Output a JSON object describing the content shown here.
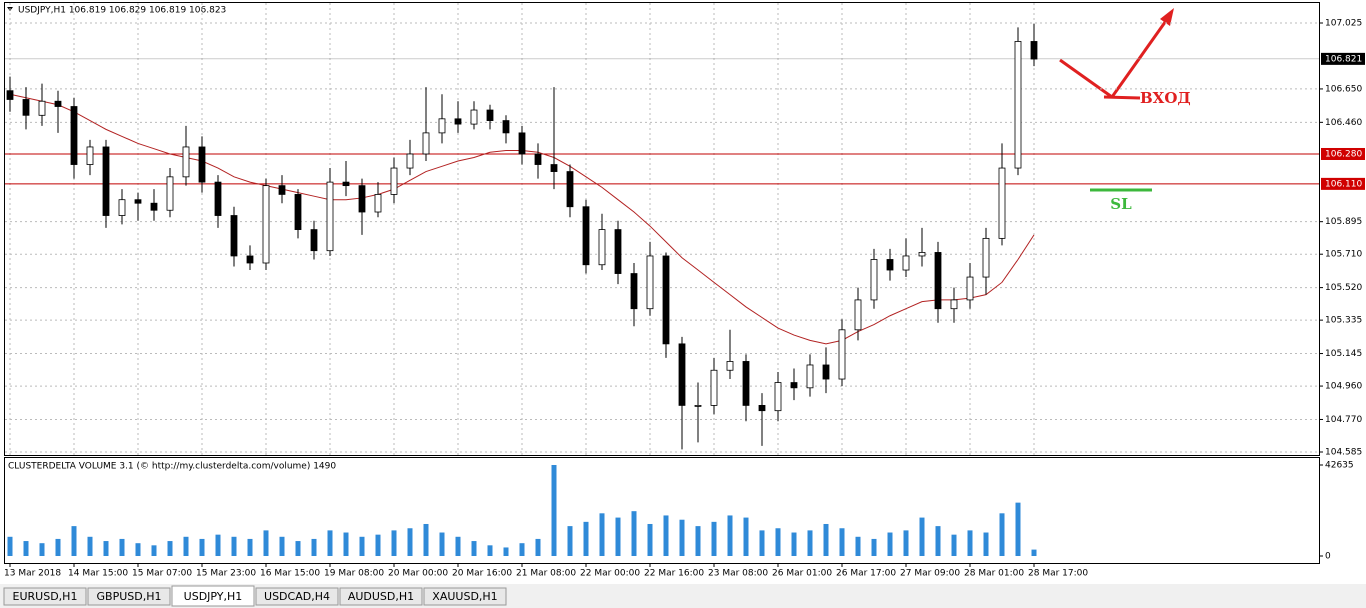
{
  "chart_data": {
    "type": "candlestick",
    "title": "USDJPY,H1  106.819 106.829 106.819 106.823",
    "open": [
      106.64,
      106.59,
      106.5,
      106.58,
      106.55,
      106.22,
      106.32,
      105.93,
      106.02,
      106.0,
      105.96,
      106.15,
      106.32,
      106.12,
      105.93,
      105.7,
      105.66,
      106.1,
      106.05,
      105.85,
      105.73,
      106.12,
      106.1,
      105.95,
      106.05,
      106.2,
      106.28,
      106.4,
      106.48,
      106.45,
      106.53,
      106.47,
      106.4,
      106.28,
      106.22,
      106.18,
      105.98,
      105.65,
      105.85,
      105.6,
      105.4,
      105.7,
      105.2,
      104.85,
      104.85,
      105.05,
      105.1,
      104.85,
      104.82,
      104.98,
      104.95,
      105.08,
      105.0,
      105.28,
      105.45,
      105.68,
      105.62,
      105.7,
      105.72,
      105.4,
      105.45,
      105.58,
      105.8,
      106.2,
      106.92
    ],
    "high": [
      106.72,
      106.66,
      106.68,
      106.64,
      106.6,
      106.36,
      106.36,
      106.08,
      106.06,
      106.08,
      106.2,
      106.44,
      106.38,
      106.16,
      105.98,
      105.76,
      106.14,
      106.16,
      106.08,
      105.9,
      106.2,
      106.24,
      106.14,
      106.12,
      106.26,
      106.36,
      106.66,
      106.62,
      106.58,
      106.58,
      106.56,
      106.5,
      106.44,
      106.34,
      106.66,
      106.22,
      106.02,
      105.94,
      105.9,
      105.66,
      105.78,
      105.72,
      105.24,
      104.98,
      105.12,
      105.28,
      105.14,
      104.92,
      105.04,
      105.06,
      105.14,
      105.18,
      105.34,
      105.52,
      105.74,
      105.74,
      105.8,
      105.86,
      105.78,
      105.52,
      105.66,
      105.86,
      106.34,
      107.0,
      107.02
    ],
    "low": [
      106.52,
      106.42,
      106.44,
      106.4,
      106.14,
      106.16,
      105.86,
      105.88,
      105.9,
      105.9,
      105.92,
      106.1,
      106.06,
      105.86,
      105.64,
      105.62,
      105.62,
      106.0,
      105.8,
      105.68,
      105.7,
      106.04,
      105.82,
      105.92,
      106.0,
      106.16,
      106.24,
      106.34,
      106.4,
      106.42,
      106.42,
      106.34,
      106.22,
      106.14,
      106.08,
      105.92,
      105.6,
      105.62,
      105.54,
      105.3,
      105.36,
      105.12,
      104.6,
      104.64,
      104.8,
      105.0,
      104.76,
      104.62,
      104.76,
      104.88,
      104.9,
      104.92,
      104.96,
      105.22,
      105.4,
      105.56,
      105.58,
      105.64,
      105.32,
      105.32,
      105.4,
      105.48,
      105.76,
      106.16,
      106.78
    ],
    "close": [
      106.59,
      106.5,
      106.58,
      106.55,
      106.22,
      106.32,
      105.93,
      106.02,
      106.0,
      105.96,
      106.15,
      106.32,
      106.12,
      105.93,
      105.7,
      105.66,
      106.1,
      106.05,
      105.85,
      105.73,
      106.12,
      106.1,
      105.95,
      106.05,
      106.2,
      106.28,
      106.4,
      106.48,
      106.45,
      106.53,
      106.47,
      106.4,
      106.28,
      106.22,
      106.18,
      105.98,
      105.65,
      105.85,
      105.6,
      105.4,
      105.7,
      105.2,
      104.85,
      104.85,
      105.05,
      105.1,
      104.85,
      104.82,
      104.98,
      104.95,
      105.08,
      105.0,
      105.28,
      105.45,
      105.68,
      105.62,
      105.7,
      105.72,
      105.4,
      105.45,
      105.58,
      105.8,
      106.2,
      106.92,
      106.82
    ],
    "moving_average": {
      "color": "#b22222",
      "values": [
        106.62,
        106.6,
        106.58,
        106.56,
        106.52,
        106.47,
        106.42,
        106.38,
        106.34,
        106.31,
        106.28,
        106.26,
        106.24,
        106.2,
        106.15,
        106.12,
        106.1,
        106.08,
        106.06,
        106.04,
        106.02,
        106.02,
        106.03,
        106.05,
        106.08,
        106.13,
        106.18,
        106.21,
        106.24,
        106.26,
        106.29,
        106.3,
        106.3,
        106.29,
        106.26,
        106.21,
        106.15,
        106.09,
        106.02,
        105.95,
        105.87,
        105.78,
        105.69,
        105.62,
        105.55,
        105.48,
        105.41,
        105.35,
        105.29,
        105.25,
        105.22,
        105.2,
        105.22,
        105.27,
        105.31,
        105.36,
        105.4,
        105.44,
        105.45,
        105.45,
        105.46,
        105.48,
        105.55,
        105.68,
        105.82
      ]
    },
    "ylim": [
      104.585,
      107.025
    ],
    "yticks": [
      {
        "value": 107.025,
        "label": "107.025"
      },
      {
        "value": 106.65,
        "label": "106.650"
      },
      {
        "value": 106.46,
        "label": "106.460"
      },
      {
        "value": 105.895,
        "label": "105.895"
      },
      {
        "value": 105.71,
        "label": "105.710"
      },
      {
        "value": 105.52,
        "label": "105.520"
      },
      {
        "value": 105.335,
        "label": "105.335"
      },
      {
        "value": 105.145,
        "label": "105.145"
      },
      {
        "value": 104.96,
        "label": "104.960"
      },
      {
        "value": 104.77,
        "label": "104.770"
      },
      {
        "value": 104.585,
        "label": "104.585"
      }
    ],
    "price_lines": [
      {
        "value": 106.28,
        "label": "106.280"
      },
      {
        "value": 106.11,
        "label": "106.110"
      }
    ],
    "current_price": {
      "value": 106.821,
      "label": "106.821"
    },
    "xticks": [
      {
        "value": 0,
        "label": "13 Mar 2018"
      },
      {
        "value": 4,
        "label": "14 Mar 15:00"
      },
      {
        "value": 8,
        "label": "15 Mar 07:00"
      },
      {
        "value": 12,
        "label": "15 Mar 23:00"
      },
      {
        "value": 16,
        "label": "16 Mar 15:00"
      },
      {
        "value": 20,
        "label": "19 Mar 08:00"
      },
      {
        "value": 24,
        "label": "20 Mar 00:00"
      },
      {
        "value": 28,
        "label": "20 Mar 16:00"
      },
      {
        "value": 32,
        "label": "21 Mar 08:00"
      },
      {
        "value": 36,
        "label": "22 Mar 00:00"
      },
      {
        "value": 40,
        "label": "22 Mar 16:00"
      },
      {
        "value": 44,
        "label": "23 Mar 08:00"
      },
      {
        "value": 48,
        "label": "26 Mar 01:00"
      },
      {
        "value": 52,
        "label": "26 Mar 17:00"
      },
      {
        "value": 56,
        "label": "27 Mar 09:00"
      },
      {
        "value": 60,
        "label": "28 Mar 01:00"
      },
      {
        "value": 64,
        "label": "28 Mar 17:00"
      }
    ],
    "annotations": [
      "ВХОД",
      "SL"
    ],
    "volume": {
      "title": "CLUSTERDELTA VOLUME 3.1 (© http://my.clusterdelta.com/volume) 1490",
      "color": "#2f8ad8",
      "ylim": [
        0,
        42635
      ],
      "yticks": [
        42635,
        0
      ],
      "values": [
        9000,
        7000,
        6000,
        8000,
        14000,
        9000,
        7000,
        8000,
        6000,
        5000,
        7000,
        9000,
        8000,
        10000,
        9000,
        8000,
        12000,
        9000,
        7000,
        8000,
        12000,
        11000,
        9000,
        10000,
        12000,
        13000,
        15000,
        11000,
        9000,
        7000,
        5000,
        4000,
        6000,
        8000,
        42635,
        14000,
        16000,
        20000,
        18000,
        21000,
        15000,
        19000,
        17000,
        14000,
        16000,
        19000,
        18000,
        12000,
        13000,
        11000,
        12000,
        15000,
        13000,
        9000,
        8000,
        11000,
        12000,
        18000,
        14000,
        10000,
        12000,
        11000,
        20000,
        25000,
        3000
      ]
    }
  },
  "tabs": [
    "EURUSD,H1",
    "GBPUSD,H1",
    "USDJPY,H1",
    "USDCAD,H4",
    "AUDUSD,H1",
    "XAUUSD,H1"
  ],
  "active_tab": 2
}
